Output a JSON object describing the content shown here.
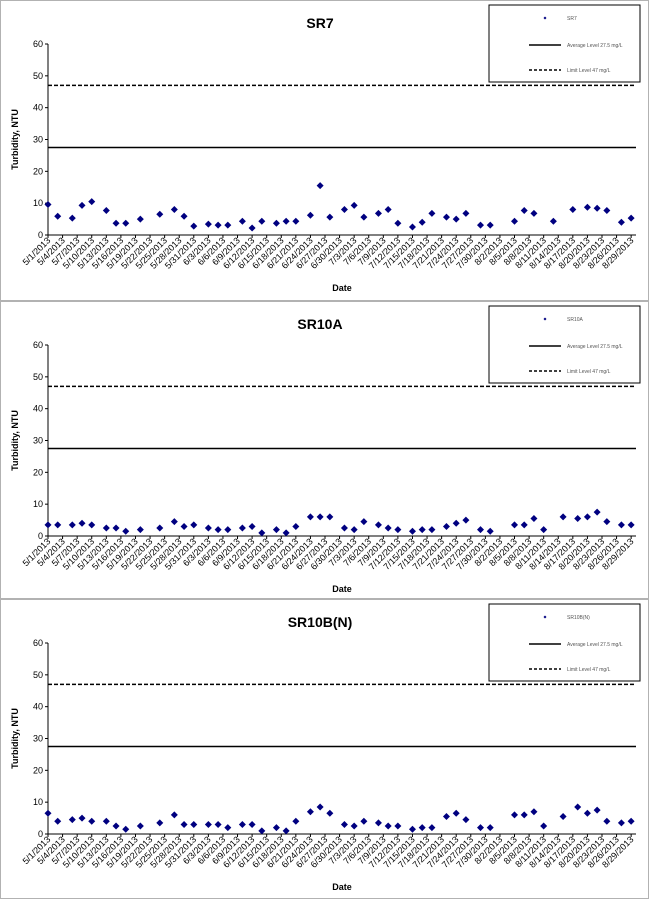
{
  "chart_data": [
    {
      "type": "scatter",
      "title": "SR7",
      "x_label": "Date",
      "y_label": "Turbidity, NTU",
      "xlim": [
        "5/1/2013",
        "8/30/2013"
      ],
      "ylim": [
        0,
        60
      ],
      "yticks": [
        0,
        10,
        20,
        30,
        40,
        50,
        60
      ],
      "xticks": [
        "5/1/2013",
        "5/4/2013",
        "5/7/2013",
        "5/10/2013",
        "5/13/2013",
        "5/16/2013",
        "5/19/2013",
        "5/22/2013",
        "5/25/2013",
        "5/28/2013",
        "5/31/2013",
        "6/3/2013",
        "6/6/2013",
        "6/9/2013",
        "6/12/2013",
        "6/15/2013",
        "6/18/2013",
        "6/21/2013",
        "6/24/2013",
        "6/27/2013",
        "6/30/2013",
        "7/3/2013",
        "7/6/2013",
        "7/9/2013",
        "7/12/2013",
        "7/15/2013",
        "7/18/2013",
        "7/21/2013",
        "7/24/2013",
        "7/27/2013",
        "7/30/2013",
        "8/2/2013",
        "8/5/2013",
        "8/8/2013",
        "8/11/2013",
        "8/14/2013",
        "8/17/2013",
        "8/20/2013",
        "8/23/2013",
        "8/26/2013",
        "8/29/2013"
      ],
      "series": [
        {
          "name": "SR7",
          "color": "#000080",
          "x": [
            "5/1/2013",
            "5/3/2013",
            "5/6/2013",
            "5/8/2013",
            "5/10/2013",
            "5/13/2013",
            "5/15/2013",
            "5/17/2013",
            "5/20/2013",
            "5/24/2013",
            "5/27/2013",
            "5/29/2013",
            "5/31/2013",
            "6/3/2013",
            "6/5/2013",
            "6/7/2013",
            "6/10/2013",
            "6/12/2013",
            "6/14/2013",
            "6/17/2013",
            "6/19/2013",
            "6/21/2013",
            "6/24/2013",
            "6/26/2013",
            "6/28/2013",
            "7/1/2013",
            "7/3/2013",
            "7/5/2013",
            "7/8/2013",
            "7/10/2013",
            "7/12/2013",
            "7/15/2013",
            "7/17/2013",
            "7/19/2013",
            "7/22/2013",
            "7/24/2013",
            "7/26/2013",
            "7/29/2013",
            "7/31/2013",
            "8/5/2013",
            "8/7/2013",
            "8/9/2013",
            "8/13/2013",
            "8/17/2013",
            "8/20/2013",
            "8/22/2013",
            "8/24/2013",
            "8/27/2013",
            "8/29/2013"
          ],
          "values": [
            9.6,
            5.9,
            5.3,
            9.3,
            10.5,
            7.7,
            3.7,
            3.7,
            5.0,
            6.5,
            8.0,
            5.9,
            2.8,
            3.4,
            3.1,
            3.1,
            4.3,
            2.2,
            4.3,
            3.7,
            4.3,
            4.3,
            6.2,
            15.5,
            5.6,
            8.0,
            9.3,
            5.6,
            6.8,
            8.0,
            3.7,
            2.5,
            4.0,
            6.8,
            5.6,
            5.0,
            6.8,
            3.1,
            3.1,
            4.3,
            7.7,
            6.8,
            4.3,
            8.0,
            8.7,
            8.4,
            7.7,
            4.0,
            5.3
          ]
        }
      ],
      "lines": [
        {
          "name": "Average Level 27.5 mg/L",
          "value": 27.5,
          "dashed": false,
          "color": "#000000"
        },
        {
          "name": "Limit Level 47 mg/L",
          "value": 47,
          "dashed": true,
          "color": "#000000"
        }
      ]
    },
    {
      "type": "scatter",
      "title": "SR10A",
      "x_label": "Date",
      "y_label": "Turbidity, NTU",
      "xlim": [
        "5/1/2013",
        "8/30/2013"
      ],
      "ylim": [
        0,
        60
      ],
      "yticks": [
        0,
        10,
        20,
        30,
        40,
        50,
        60
      ],
      "xticks": [
        "5/1/2013",
        "5/4/2013",
        "5/7/2013",
        "5/10/2013",
        "5/13/2013",
        "5/16/2013",
        "5/19/2013",
        "5/22/2013",
        "5/25/2013",
        "5/28/2013",
        "5/31/2013",
        "6/3/2013",
        "6/6/2013",
        "6/9/2013",
        "6/12/2013",
        "6/15/2013",
        "6/18/2013",
        "6/21/2013",
        "6/24/2013",
        "6/27/2013",
        "6/30/2013",
        "7/3/2013",
        "7/6/2013",
        "7/9/2013",
        "7/12/2013",
        "7/15/2013",
        "7/18/2013",
        "7/21/2013",
        "7/24/2013",
        "7/27/2013",
        "7/30/2013",
        "8/2/2013",
        "8/5/2013",
        "8/8/2013",
        "8/11/2013",
        "8/14/2013",
        "8/17/2013",
        "8/20/2013",
        "8/23/2013",
        "8/26/2013",
        "8/29/2013"
      ],
      "series": [
        {
          "name": "SR10A",
          "color": "#000080",
          "x": [
            "5/1/2013",
            "5/3/2013",
            "5/6/2013",
            "5/8/2013",
            "5/10/2013",
            "5/13/2013",
            "5/15/2013",
            "5/17/2013",
            "5/20/2013",
            "5/24/2013",
            "5/27/2013",
            "5/29/2013",
            "5/31/2013",
            "6/3/2013",
            "6/5/2013",
            "6/7/2013",
            "6/10/2013",
            "6/12/2013",
            "6/14/2013",
            "6/17/2013",
            "6/19/2013",
            "6/21/2013",
            "6/24/2013",
            "6/26/2013",
            "6/28/2013",
            "7/1/2013",
            "7/3/2013",
            "7/5/2013",
            "7/8/2013",
            "7/10/2013",
            "7/12/2013",
            "7/15/2013",
            "7/17/2013",
            "7/19/2013",
            "7/22/2013",
            "7/24/2013",
            "7/26/2013",
            "7/29/2013",
            "7/31/2013",
            "8/5/2013",
            "8/7/2013",
            "8/9/2013",
            "8/11/2013",
            "8/15/2013",
            "8/18/2013",
            "8/20/2013",
            "8/22/2013",
            "8/24/2013",
            "8/27/2013",
            "8/29/2013"
          ],
          "values": [
            3.5,
            3.5,
            3.5,
            4,
            3.5,
            2.5,
            2.5,
            1.5,
            2,
            2.5,
            4.5,
            3,
            3.5,
            2.5,
            2,
            2,
            2.5,
            3,
            1,
            2,
            1,
            3,
            6,
            6,
            6,
            2.5,
            2,
            4.5,
            3.5,
            2.5,
            2,
            1.5,
            2,
            2,
            3,
            4,
            5,
            2,
            1.5,
            3.5,
            3.5,
            5.5,
            2,
            6,
            5.5,
            6,
            7.5,
            4.5,
            3.5,
            3.5
          ]
        }
      ],
      "lines": [
        {
          "name": "Average Level 27.5 mg/L",
          "value": 27.5,
          "dashed": false,
          "color": "#000000"
        },
        {
          "name": "Limit Level 47 mg/L",
          "value": 47,
          "dashed": true,
          "color": "#000000"
        }
      ]
    },
    {
      "type": "scatter",
      "title": "SR10B(N)",
      "x_label": "Date",
      "y_label": "Turbidity, NTU",
      "xlim": [
        "5/1/2013",
        "8/30/2013"
      ],
      "ylim": [
        0,
        60
      ],
      "yticks": [
        0,
        10,
        20,
        30,
        40,
        50,
        60
      ],
      "xticks": [
        "5/1/2013",
        "5/4/2013",
        "5/7/2013",
        "5/10/2013",
        "5/13/2013",
        "5/16/2013",
        "5/19/2013",
        "5/22/2013",
        "5/25/2013",
        "5/28/2013",
        "5/31/2013",
        "6/3/2013",
        "6/6/2013",
        "6/9/2013",
        "6/12/2013",
        "6/15/2013",
        "6/18/2013",
        "6/21/2013",
        "6/24/2013",
        "6/27/2013",
        "6/30/2013",
        "7/3/2013",
        "7/6/2013",
        "7/9/2013",
        "7/12/2013",
        "7/15/2013",
        "7/18/2013",
        "7/21/2013",
        "7/24/2013",
        "7/27/2013",
        "7/30/2013",
        "8/2/2013",
        "8/5/2013",
        "8/8/2013",
        "8/11/2013",
        "8/14/2013",
        "8/17/2013",
        "8/20/2013",
        "8/23/2013",
        "8/26/2013",
        "8/29/2013"
      ],
      "series": [
        {
          "name": "SR10B(N)",
          "color": "#000080",
          "x": [
            "5/1/2013",
            "5/3/2013",
            "5/6/2013",
            "5/8/2013",
            "5/10/2013",
            "5/13/2013",
            "5/15/2013",
            "5/17/2013",
            "5/20/2013",
            "5/24/2013",
            "5/27/2013",
            "5/29/2013",
            "5/31/2013",
            "6/3/2013",
            "6/5/2013",
            "6/7/2013",
            "6/10/2013",
            "6/12/2013",
            "6/14/2013",
            "6/17/2013",
            "6/19/2013",
            "6/21/2013",
            "6/24/2013",
            "6/26/2013",
            "6/28/2013",
            "7/1/2013",
            "7/3/2013",
            "7/5/2013",
            "7/8/2013",
            "7/10/2013",
            "7/12/2013",
            "7/15/2013",
            "7/17/2013",
            "7/19/2013",
            "7/22/2013",
            "7/24/2013",
            "7/26/2013",
            "7/29/2013",
            "7/31/2013",
            "8/5/2013",
            "8/7/2013",
            "8/9/2013",
            "8/11/2013",
            "8/15/2013",
            "8/18/2013",
            "8/20/2013",
            "8/22/2013",
            "8/24/2013",
            "8/27/2013",
            "8/29/2013"
          ],
          "values": [
            6.5,
            4,
            4.5,
            5,
            4,
            4,
            2.5,
            1.5,
            2.5,
            3.5,
            6,
            3,
            3,
            3,
            3,
            2,
            3,
            3,
            1,
            2,
            1,
            4,
            7,
            8.5,
            6.5,
            3,
            2.5,
            4,
            3.5,
            2.5,
            2.5,
            1.5,
            2,
            2,
            5.5,
            6.5,
            4.5,
            2,
            2,
            6,
            6,
            7,
            2.5,
            5.5,
            8.5,
            6.5,
            7.5,
            4,
            3.5,
            4
          ]
        }
      ],
      "lines": [
        {
          "name": "Average Level 27.5 mg/L",
          "value": 27.5,
          "dashed": false,
          "color": "#000000"
        },
        {
          "name": "Limit Level 47 mg/L",
          "value": 47,
          "dashed": true,
          "color": "#000000"
        }
      ]
    }
  ]
}
